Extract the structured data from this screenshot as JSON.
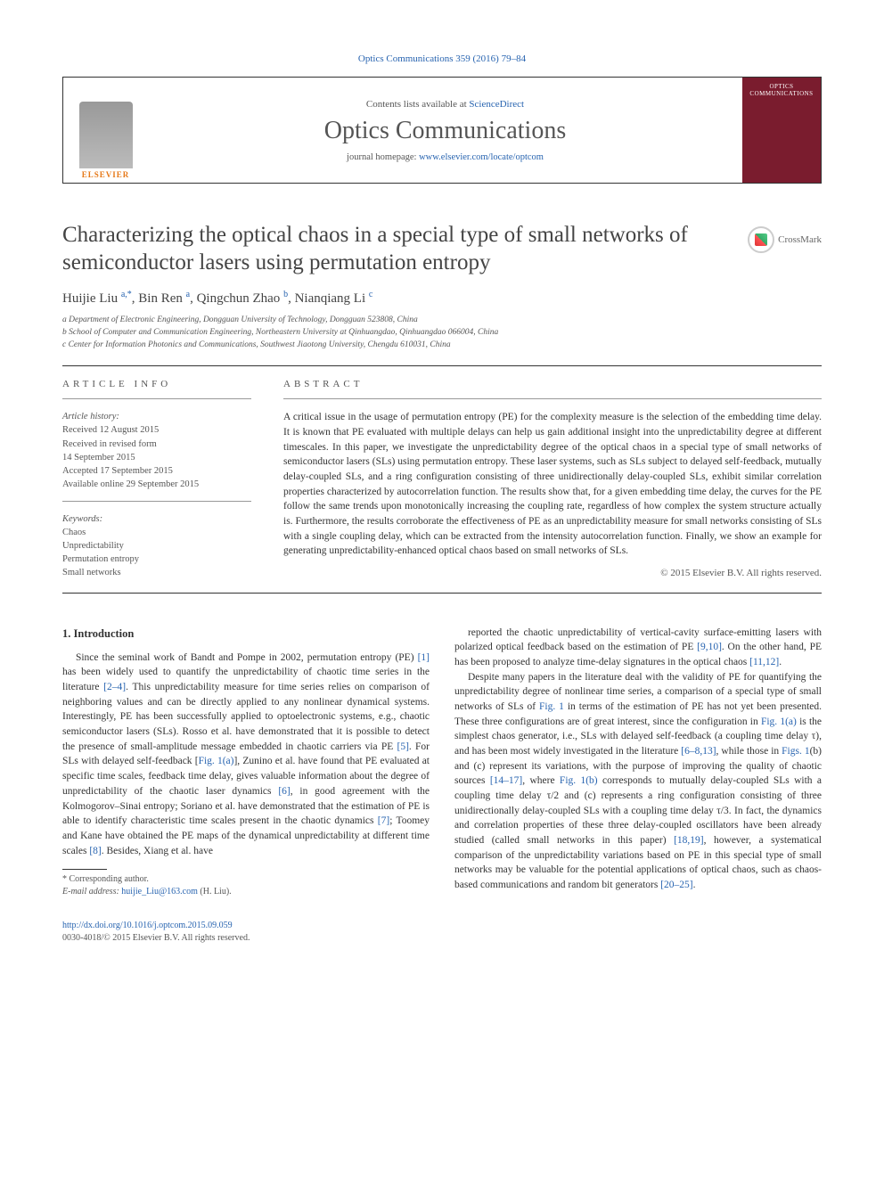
{
  "top_citation": "Optics Communications 359 (2016) 79–84",
  "header": {
    "contents_prefix": "Contents lists available at ",
    "contents_link": "ScienceDirect",
    "journal_name": "Optics Communications",
    "homepage_prefix": "journal homepage: ",
    "homepage_link": "www.elsevier.com/locate/optcom",
    "publisher_logo_text": "ELSEVIER",
    "cover_text": "OPTICS COMMUNICATIONS"
  },
  "crossmark_label": "CrossMark",
  "title": "Characterizing the optical chaos in a special type of small networks of semiconductor lasers using permutation entropy",
  "authors_html": "Huijie Liu <sup>a,*</sup>, Bin Ren <sup>a</sup>, Qingchun Zhao <sup>b</sup>, Nianqiang Li <sup>c</sup>",
  "affiliations": [
    "a Department of Electronic Engineering, Dongguan University of Technology, Dongguan 523808, China",
    "b School of Computer and Communication Engineering, Northeastern University at Qinhuangdao, Qinhuangdao 066004, China",
    "c Center for Information Photonics and Communications, Southwest Jiaotong University, Chengdu 610031, China"
  ],
  "info_label": "ARTICLE INFO",
  "abs_label": "ABSTRACT",
  "history_heading": "Article history:",
  "history": [
    "Received 12 August 2015",
    "Received in revised form",
    "14 September 2015",
    "Accepted 17 September 2015",
    "Available online 29 September 2015"
  ],
  "keywords_heading": "Keywords:",
  "keywords": [
    "Chaos",
    "Unpredictability",
    "Permutation entropy",
    "Small networks"
  ],
  "abstract": "A critical issue in the usage of permutation entropy (PE) for the complexity measure is the selection of the embedding time delay. It is known that PE evaluated with multiple delays can help us gain additional insight into the unpredictability degree at different timescales. In this paper, we investigate the unpredictability degree of the optical chaos in a special type of small networks of semiconductor lasers (SLs) using permutation entropy. These laser systems, such as SLs subject to delayed self-feedback, mutually delay-coupled SLs, and a ring configuration consisting of three unidirectionally delay-coupled SLs, exhibit similar correlation properties characterized by autocorrelation function. The results show that, for a given embedding time delay, the curves for the PE follow the same trends upon monotonically increasing the coupling rate, regardless of how complex the system structure actually is. Furthermore, the results corroborate the effectiveness of PE as an unpredictability measure for small networks consisting of SLs with a single coupling delay, which can be extracted from the intensity autocorrelation function. Finally, we show an example for generating unpredictability-enhanced optical chaos based on small networks of SLs.",
  "abs_copyright": "© 2015 Elsevier B.V. All rights reserved.",
  "section_heading": "1.  Introduction",
  "para1": "Since the seminal work of Bandt and Pompe in 2002, permutation entropy (PE) [1] has been widely used to quantify the unpredictability of chaotic time series in the literature [2–4]. This unpredictability measure for time series relies on comparison of neighboring values and can be directly applied to any nonlinear dynamical systems. Interestingly, PE has been successfully applied to optoelectronic systems, e.g., chaotic semiconductor lasers (SLs). Rosso et al. have demonstrated that it is possible to detect the presence of small-amplitude message embedded in chaotic carriers via PE [5]. For SLs with delayed self-feedback [Fig. 1(a)], Zunino et al. have found that PE evaluated at specific time scales, feedback time delay, gives valuable information about the degree of unpredictability of the chaotic laser dynamics [6], in good agreement with the Kolmogorov–Sinai entropy; Soriano et al. have demonstrated that the estimation of PE is able to identify characteristic time scales present in the chaotic dynamics [7]; Toomey and Kane have obtained the PE maps of the dynamical unpredictability at different time scales [8]. Besides, Xiang et al. have",
  "para2": "reported the chaotic unpredictability of vertical-cavity surface-emitting lasers with polarized optical feedback based on the estimation of PE [9,10]. On the other hand, PE has been proposed to analyze time-delay signatures in the optical chaos [11,12].",
  "para3": "Despite many papers in the literature deal with the validity of PE for quantifying the unpredictability degree of nonlinear time series, a comparison of a special type of small networks of SLs of Fig. 1 in terms of the estimation of PE has not yet been presented. These three configurations are of great interest, since the configuration in Fig. 1(a) is the simplest chaos generator, i.e., SLs with delayed self-feedback (a coupling time delay τ), and has been most widely investigated in the literature [6–8,13], while those in Figs. 1(b) and (c) represent its variations, with the purpose of improving the quality of chaotic sources [14–17], where Fig. 1(b) corresponds to mutually delay-coupled SLs with a coupling time delay τ/2 and (c) represents a ring configuration consisting of three unidirectionally delay-coupled SLs with a coupling time delay τ/3. In fact, the dynamics and correlation properties of these three delay-coupled oscillators have been already studied (called small networks in this paper) [18,19], however, a systematical comparison of the unpredictability variations based on PE in this special type of small networks may be valuable for the potential applications of optical chaos, such as chaos-based communications and random bit generators [20–25].",
  "footnote_corr": "* Corresponding author.",
  "footnote_email_label": "E-mail address: ",
  "footnote_email": "huijie_Liu@163.com",
  "footnote_email_tail": " (H. Liu).",
  "doi_link": "http://dx.doi.org/10.1016/j.optcom.2015.09.059",
  "issn_line": "0030-4018/© 2015 Elsevier B.V. All rights reserved.",
  "colors": {
    "link": "#2864b0",
    "elsevier_orange": "#e67817",
    "cover_bg": "#7a1c2e"
  }
}
